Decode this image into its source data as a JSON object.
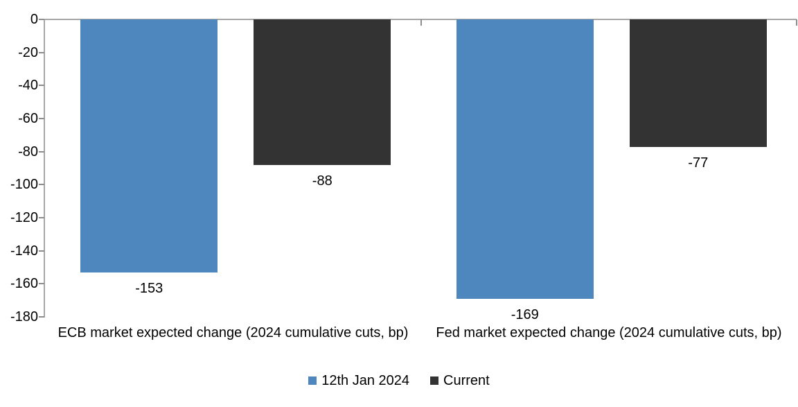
{
  "chart": {
    "background_color": "#FFFFFF",
    "axis_line_color": "#A6A6A6",
    "tick_color": "#8C8C8C",
    "text_color": "#000000"
  },
  "chart_data": {
    "type": "bar",
    "categories": [
      "ECB market expected change (2024 cumulative cuts, bp)",
      "Fed market expected change (2024 cumulative cuts, bp)"
    ],
    "series": [
      {
        "name": "12th Jan 2024",
        "color": "#4E87BE",
        "values": [
          -153,
          -169
        ]
      },
      {
        "name": "Current",
        "color": "#333333",
        "values": [
          -88,
          -77
        ]
      }
    ],
    "data_labels": [
      [
        "-153",
        "-169"
      ],
      [
        "-88",
        "-77"
      ]
    ],
    "title": "",
    "xlabel": "",
    "ylabel": "",
    "ylim": [
      -180,
      0
    ],
    "yticks": [
      0,
      -20,
      -40,
      -60,
      -80,
      -100,
      -120,
      -140,
      -160,
      -180
    ],
    "grid": false,
    "legend_position": "bottom",
    "bar_orientation": "vertical-negative"
  }
}
